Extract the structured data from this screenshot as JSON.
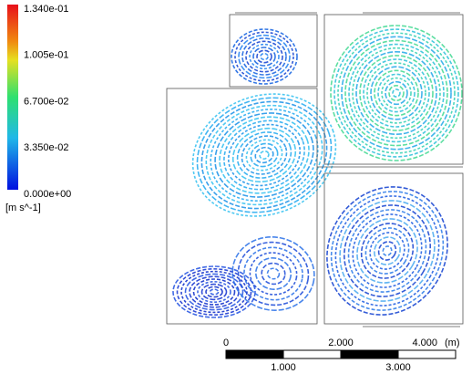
{
  "legend": {
    "ticks": [
      "1.340e-01",
      "1.005e-01",
      "6.700e-02",
      "3.350e-02",
      "0.000e+00"
    ],
    "unit": "[m s^-1]"
  },
  "scale_bar": {
    "labels_top": [
      "0",
      "2.000",
      "4.000"
    ],
    "unit": "(m)",
    "labels_bottom": [
      "1.000",
      "3.000"
    ]
  }
}
